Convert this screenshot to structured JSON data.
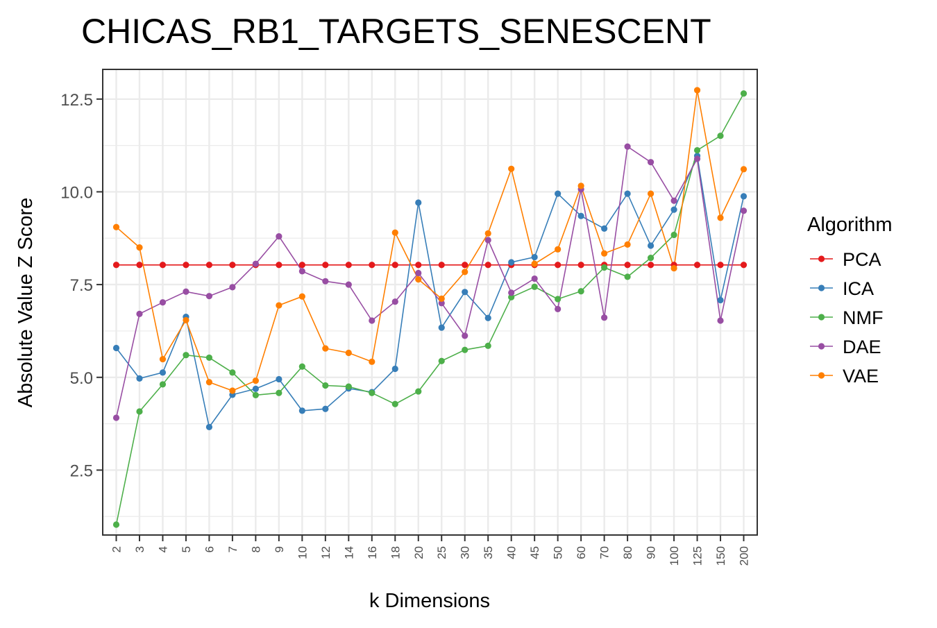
{
  "chart_data": {
    "type": "line",
    "title": "CHICAS_RB1_TARGETS_SENESCENT",
    "xlabel": "k Dimensions",
    "ylabel": "Absolute Value Z Score",
    "categories": [
      "2",
      "3",
      "4",
      "5",
      "6",
      "7",
      "8",
      "9",
      "10",
      "12",
      "14",
      "16",
      "18",
      "20",
      "25",
      "30",
      "35",
      "40",
      "45",
      "50",
      "60",
      "70",
      "80",
      "90",
      "100",
      "125",
      "150",
      "200"
    ],
    "ylim": [
      0.75,
      13.3
    ],
    "yticks": [
      2.5,
      5.0,
      7.5,
      10.0,
      12.5
    ],
    "ytick_labels": [
      "2.5",
      "5.0",
      "7.5",
      "10.0",
      "12.5"
    ],
    "grid": true,
    "legend": {
      "title": "Algorithm",
      "placement": "right"
    },
    "series": [
      {
        "name": "PCA",
        "color": "#E41A1C",
        "values": [
          8.03,
          8.03,
          8.03,
          8.03,
          8.03,
          8.03,
          8.03,
          8.03,
          8.03,
          8.03,
          8.03,
          8.03,
          8.03,
          8.03,
          8.03,
          8.03,
          8.03,
          8.03,
          8.03,
          8.03,
          8.03,
          8.03,
          8.03,
          8.03,
          8.03,
          8.03,
          8.03,
          8.03
        ]
      },
      {
        "name": "ICA",
        "color": "#377EB8",
        "values": [
          5.79,
          4.97,
          5.13,
          6.63,
          3.66,
          4.53,
          4.69,
          4.95,
          4.1,
          4.15,
          4.7,
          4.6,
          5.23,
          9.71,
          6.34,
          7.3,
          6.6,
          8.1,
          8.24,
          9.95,
          9.35,
          9.01,
          9.95,
          8.55,
          9.52,
          10.97,
          7.08,
          9.88
        ]
      },
      {
        "name": "NMF",
        "color": "#4DAF4A",
        "values": [
          1.03,
          4.08,
          4.81,
          5.6,
          5.53,
          5.13,
          4.52,
          4.58,
          5.29,
          4.78,
          4.75,
          4.58,
          4.28,
          4.62,
          5.44,
          5.74,
          5.85,
          7.16,
          7.44,
          7.11,
          7.32,
          7.96,
          7.71,
          8.22,
          8.84,
          11.12,
          11.51,
          12.65
        ]
      },
      {
        "name": "DAE",
        "color": "#984EA3",
        "values": [
          3.91,
          6.71,
          7.02,
          7.31,
          7.19,
          7.43,
          8.06,
          8.8,
          7.86,
          7.59,
          7.5,
          6.53,
          7.04,
          7.81,
          7.0,
          6.12,
          8.7,
          7.28,
          7.66,
          6.84,
          10.07,
          6.61,
          11.22,
          10.8,
          9.76,
          10.89,
          6.53,
          9.49
        ]
      },
      {
        "name": "VAE",
        "color": "#FF7F00",
        "values": [
          9.05,
          8.5,
          5.49,
          6.54,
          4.87,
          4.64,
          4.91,
          6.94,
          7.18,
          5.78,
          5.66,
          5.42,
          8.9,
          7.64,
          7.12,
          7.84,
          8.88,
          10.62,
          8.06,
          8.45,
          10.16,
          8.34,
          8.58,
          9.95,
          7.94,
          12.74,
          9.3,
          10.61
        ]
      }
    ]
  }
}
